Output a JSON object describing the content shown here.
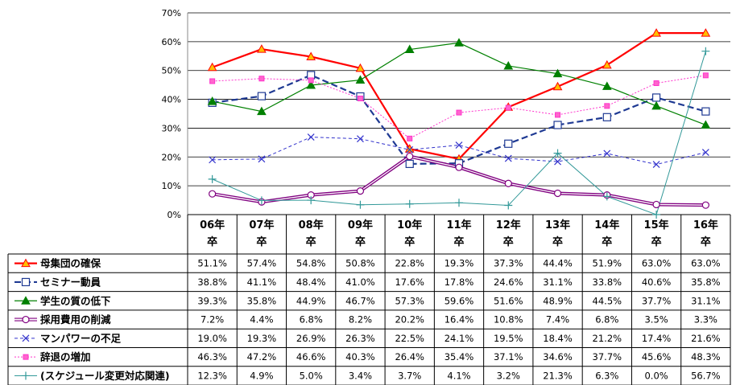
{
  "chart_data": {
    "type": "line",
    "y_ticks": [
      "0%",
      "10%",
      "20%",
      "30%",
      "40%",
      "50%",
      "60%",
      "70%"
    ],
    "ylim": [
      0,
      70
    ],
    "grid": "horizontal",
    "categories": [
      [
        "06年",
        "卒"
      ],
      [
        "07年",
        "卒"
      ],
      [
        "08年",
        "卒"
      ],
      [
        "09年",
        "卒"
      ],
      [
        "10年",
        "卒"
      ],
      [
        "11年",
        "卒"
      ],
      [
        "12年",
        "卒"
      ],
      [
        "13年",
        "卒"
      ],
      [
        "14年",
        "卒"
      ],
      [
        "15年",
        "卒"
      ],
      [
        "16年",
        "卒"
      ]
    ],
    "series": [
      {
        "name": "母集団の確保",
        "color": "#ff0000",
        "dash": "",
        "width": 2.2,
        "marker": "triangle",
        "marker_fill": "#ffc000",
        "marker_stroke": "#ff0000",
        "values": [
          51.1,
          57.4,
          54.8,
          50.8,
          22.8,
          19.3,
          37.3,
          44.4,
          51.9,
          63.0,
          63.0
        ],
        "labels": [
          "51.1%",
          "57.4%",
          "54.8%",
          "50.8%",
          "22.8%",
          "19.3%",
          "37.3%",
          "44.4%",
          "51.9%",
          "63.0%",
          "63.0%"
        ]
      },
      {
        "name": "セミナー動員",
        "color": "#1f3a93",
        "dash": "8,4",
        "width": 2.2,
        "marker": "square",
        "marker_fill": "#ffffff",
        "marker_stroke": "#1f3a93",
        "values": [
          38.8,
          41.1,
          48.4,
          41.0,
          17.6,
          17.8,
          24.6,
          31.1,
          33.8,
          40.6,
          35.8
        ],
        "labels": [
          "38.8%",
          "41.1%",
          "48.4%",
          "41.0%",
          "17.6%",
          "17.8%",
          "24.6%",
          "31.1%",
          "33.8%",
          "40.6%",
          "35.8%"
        ]
      },
      {
        "name": "学生の質の低下",
        "color": "#008000",
        "dash": "",
        "width": 1.2,
        "marker": "triangle",
        "marker_fill": "#008000",
        "marker_stroke": "#008000",
        "values": [
          39.3,
          35.8,
          44.9,
          46.7,
          57.3,
          59.6,
          51.6,
          48.9,
          44.5,
          37.7,
          31.1
        ],
        "labels": [
          "39.3%",
          "35.8%",
          "44.9%",
          "46.7%",
          "57.3%",
          "59.6%",
          "51.6%",
          "48.9%",
          "44.5%",
          "37.7%",
          "31.1%"
        ]
      },
      {
        "name": "採用費用の削減",
        "color": "#800080",
        "dash": "",
        "width": 3,
        "double": true,
        "marker": "circle",
        "marker_fill": "#ffffff",
        "marker_stroke": "#800080",
        "values": [
          7.2,
          4.4,
          6.8,
          8.2,
          20.2,
          16.4,
          10.8,
          7.4,
          6.8,
          3.5,
          3.3
        ],
        "labels": [
          "7.2%",
          "4.4%",
          "6.8%",
          "8.2%",
          "20.2%",
          "16.4%",
          "10.8%",
          "7.4%",
          "6.8%",
          "3.5%",
          "3.3%"
        ]
      },
      {
        "name": "マンパワーの不足",
        "color": "#3333cc",
        "dash": "4,3",
        "width": 1,
        "marker": "x",
        "marker_fill": "none",
        "marker_stroke": "#3333cc",
        "values": [
          19.0,
          19.3,
          26.9,
          26.3,
          22.5,
          24.1,
          19.5,
          18.4,
          21.2,
          17.4,
          21.6
        ],
        "labels": [
          "19.0%",
          "19.3%",
          "26.9%",
          "26.3%",
          "22.5%",
          "24.1%",
          "19.5%",
          "18.4%",
          "21.2%",
          "17.4%",
          "21.6%"
        ]
      },
      {
        "name": "辞退の増加",
        "color": "#ff33cc",
        "dash": "2,2",
        "width": 1,
        "marker": "smallsquare",
        "marker_fill": "#ff66cc",
        "marker_stroke": "#ff33cc",
        "values": [
          46.3,
          47.2,
          46.6,
          40.3,
          26.4,
          35.4,
          37.1,
          34.6,
          37.7,
          45.6,
          48.3
        ],
        "labels": [
          "46.3%",
          "47.2%",
          "46.6%",
          "40.3%",
          "26.4%",
          "35.4%",
          "37.1%",
          "34.6%",
          "37.7%",
          "45.6%",
          "48.3%"
        ]
      },
      {
        "name": "(スケジュール変更対応関連)",
        "color": "#339999",
        "dash": "",
        "width": 1,
        "marker": "plus",
        "marker_fill": "none",
        "marker_stroke": "#339999",
        "values": [
          12.3,
          4.9,
          5.0,
          3.4,
          3.7,
          4.1,
          3.2,
          21.3,
          6.3,
          0.0,
          56.7
        ],
        "labels": [
          "12.3%",
          "4.9%",
          "5.0%",
          "3.4%",
          "3.7%",
          "4.1%",
          "3.2%",
          "21.3%",
          "6.3%",
          "0.0%",
          "56.7%"
        ]
      }
    ]
  }
}
